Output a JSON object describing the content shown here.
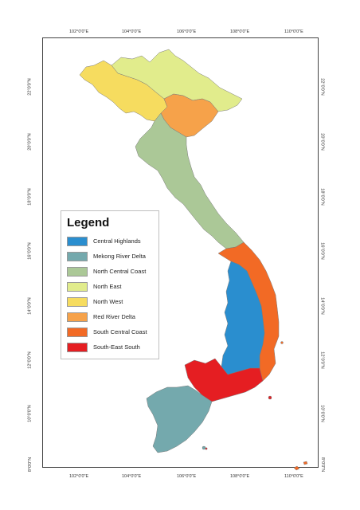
{
  "map": {
    "top_ticks": [
      "102°0'0\"E",
      "104°0'0\"E",
      "106°0'0\"E",
      "108°0'0\"E",
      "110°0'0\"E"
    ],
    "bottom_ticks": [
      "102°0'0\"E",
      "104°0'0\"E",
      "106°0'0\"E",
      "108°0'0\"E",
      "110°0'0\"E"
    ],
    "left_ticks": [
      "22°0'0\"N",
      "20°0'0\"N",
      "18°0'0\"N",
      "16°0'0\"N",
      "14°0'0\"N",
      "12°0'0\"N",
      "10°0'0\"N",
      "8°0'0\"N"
    ],
    "right_ticks": [
      "22°0'0\"N",
      "20°0'0\"N",
      "18°0'0\"N",
      "16°0'0\"N",
      "14°0'0\"N",
      "12°0'0\"N",
      "10°0'0\"N",
      "8°0'0\"N"
    ]
  },
  "legend": {
    "title": "Legend",
    "items": [
      {
        "label": "Central Highlands",
        "color": "#2a8ecf"
      },
      {
        "label": "Mekong River Delta",
        "color": "#74a9ad"
      },
      {
        "label": "North Central Coast",
        "color": "#abc897"
      },
      {
        "label": "North East",
        "color": "#e1ec8c"
      },
      {
        "label": "North West",
        "color": "#f6dc5f"
      },
      {
        "label": "Red River Delta",
        "color": "#f6a24a"
      },
      {
        "label": "South Central Coast",
        "color": "#f26a25"
      },
      {
        "label": "South-East South",
        "color": "#e51e22"
      }
    ]
  }
}
